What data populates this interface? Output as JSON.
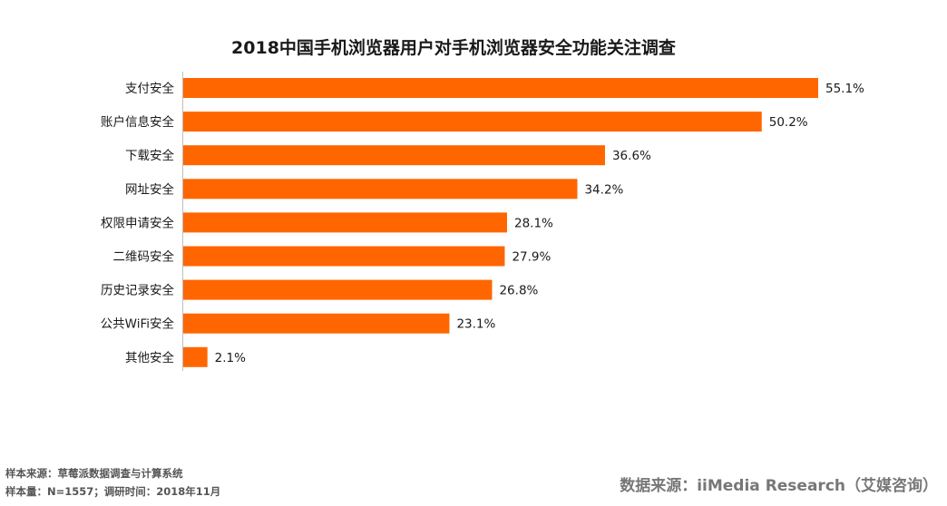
{
  "chart_data": {
    "type": "bar",
    "orientation": "horizontal",
    "title": "2018中国手机浏览器用户对手机浏览器安全功能关注调查",
    "categories": [
      "支付安全",
      "账户信息安全",
      "下载安全",
      "网址安全",
      "权限申请安全",
      "二维码安全",
      "历史记录安全",
      "公共WiFi安全",
      "其他安全"
    ],
    "values": [
      55.1,
      50.2,
      36.6,
      34.2,
      28.1,
      27.9,
      26.8,
      23.1,
      2.1
    ],
    "value_labels": [
      "55.1%",
      "50.2%",
      "36.6%",
      "34.2%",
      "28.1%",
      "27.9%",
      "26.8%",
      "23.1%",
      "2.1%"
    ],
    "xlim": [
      0,
      55.1
    ],
    "bar_color": "#ff6600",
    "grid": false
  },
  "footer": {
    "sample_source": "样本来源：草莓派数据调查与计算系统",
    "sample_size": "样本量：N=1557；调研时间：2018年11月",
    "data_source": "数据来源：iiMedia Research（艾媒咨询）"
  }
}
